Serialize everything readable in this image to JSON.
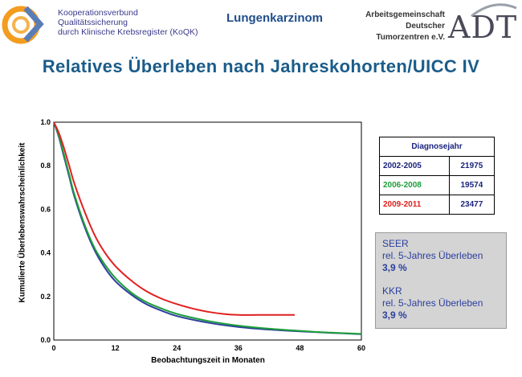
{
  "header": {
    "koqk_lines": [
      "Kooperationsverbund",
      "Qualitätssicherung",
      "durch Klinische Krebsregister (KoQK)"
    ],
    "topic": "Lungenkarzinom",
    "adt_lines": [
      "Arbeitsgemeinschaft",
      "Deutscher",
      "Tumorzentren e.V."
    ],
    "adt_word": "ADT"
  },
  "title": "Relatives Überleben nach Jahreskohorten/UICC IV",
  "legend": {
    "header": "Diagnosejahr",
    "rows": [
      {
        "label": "2002-2005",
        "count": "21975",
        "color": "#1a237e"
      },
      {
        "label": "2006-2008",
        "count": "19574",
        "color": "#1e9e3a"
      },
      {
        "label": "2009-2011",
        "count": "23477",
        "color": "#e02020"
      }
    ]
  },
  "infobox": {
    "seer_title": "SEER",
    "seer_sub": "rel. 5-Jahres Überleben",
    "seer_value": "3,9 %",
    "kkr_title": "KKR",
    "kkr_sub": "rel. 5-Jahres Überleben",
    "kkr_value": "3,9 %"
  },
  "chart_data": {
    "type": "line",
    "xlabel": "Beobachtungszeit in Monaten",
    "ylabel": "Kumulierte Überlebenswahrscheinlichkeit",
    "xlim": [
      0,
      60
    ],
    "ylim": [
      0,
      1
    ],
    "xticks": [
      0,
      12,
      24,
      36,
      48,
      60
    ],
    "yticks": [
      0.0,
      0.2,
      0.4,
      0.6,
      0.8,
      1.0
    ],
    "grid": true,
    "series": [
      {
        "name": "2002-2005",
        "color": "#2b3d9c",
        "x": [
          0,
          1,
          2,
          3,
          4,
          6,
          8,
          10,
          12,
          15,
          18,
          21,
          24,
          30,
          36,
          42,
          48,
          54,
          60
        ],
        "y": [
          1.0,
          0.93,
          0.84,
          0.75,
          0.66,
          0.52,
          0.41,
          0.33,
          0.27,
          0.21,
          0.165,
          0.135,
          0.11,
          0.08,
          0.06,
          0.048,
          0.04,
          0.033,
          0.027
        ]
      },
      {
        "name": "2006-2008",
        "color": "#1e9e3a",
        "x": [
          0,
          1,
          2,
          3,
          4,
          6,
          8,
          10,
          12,
          15,
          18,
          21,
          24,
          30,
          36,
          42,
          48,
          54,
          60
        ],
        "y": [
          1.0,
          0.935,
          0.85,
          0.76,
          0.67,
          0.53,
          0.42,
          0.345,
          0.285,
          0.22,
          0.175,
          0.145,
          0.12,
          0.088,
          0.066,
          0.052,
          0.042,
          0.034,
          0.028
        ]
      },
      {
        "name": "2009-2011",
        "color": "#e02020",
        "x": [
          0,
          1,
          2,
          3,
          4,
          6,
          8,
          10,
          12,
          15,
          18,
          21,
          24,
          27,
          30,
          33,
          36,
          40,
          44,
          47
        ],
        "y": [
          1.0,
          0.95,
          0.88,
          0.8,
          0.72,
          0.59,
          0.48,
          0.4,
          0.34,
          0.275,
          0.225,
          0.19,
          0.165,
          0.145,
          0.13,
          0.12,
          0.115,
          0.115,
          0.115,
          0.115
        ]
      }
    ]
  }
}
